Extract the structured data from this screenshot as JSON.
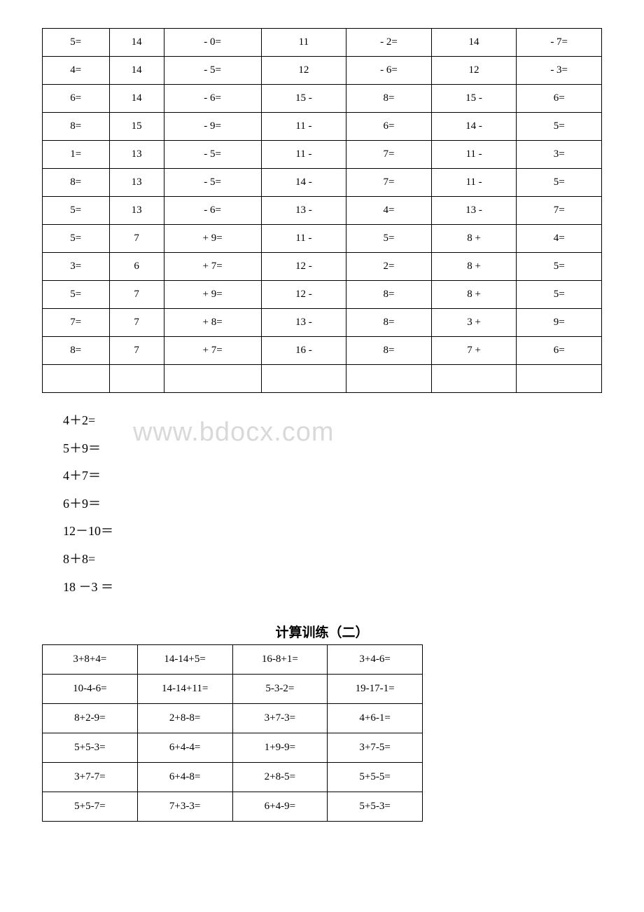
{
  "table1": {
    "rows": [
      [
        "5=",
        "14",
        "- 0=",
        "11",
        "- 2=",
        "14",
        "- 7="
      ],
      [
        "4=",
        "14",
        "- 5=",
        "12",
        "- 6=",
        "12",
        "- 3="
      ],
      [
        "6=",
        "14",
        "- 6=",
        "15 -",
        "8=",
        "15 -",
        "6="
      ],
      [
        "8=",
        "15",
        "- 9=",
        "11 -",
        "6=",
        "14 -",
        "5="
      ],
      [
        "1=",
        "13",
        "- 5=",
        "11 -",
        "7=",
        "11 -",
        "3="
      ],
      [
        "8=",
        "13",
        "- 5=",
        "14 -",
        "7=",
        "11 -",
        "5="
      ],
      [
        "5=",
        "13",
        "- 6=",
        "13 -",
        "4=",
        "13 -",
        "7="
      ],
      [
        "5=",
        "7",
        "+ 9=",
        "11 -",
        "5=",
        "8 +",
        "4="
      ],
      [
        "3=",
        "6",
        "+ 7=",
        "12 -",
        "2=",
        "8 +",
        "5="
      ],
      [
        "5=",
        "7",
        "+ 9=",
        "12 -",
        "8=",
        "8 +",
        "5="
      ],
      [
        "7=",
        "7",
        "+ 8=",
        "13 -",
        "8=",
        "3 +",
        "9="
      ],
      [
        "8=",
        "7",
        "+ 7=",
        "16 -",
        "8=",
        "7 +",
        "6="
      ],
      [
        "",
        "",
        "",
        "",
        "",
        "",
        ""
      ]
    ]
  },
  "equations": {
    "items": [
      "4＋2=",
      "5＋9＝",
      "4＋7＝",
      "6＋9＝",
      "12－10＝",
      "8＋8=",
      "18 －3 ＝"
    ]
  },
  "watermark": "www.bdocx.com",
  "section2_title": "计算训练（二）",
  "table2": {
    "rows": [
      [
        "3+8+4=",
        "14-14+5=",
        "16-8+1=",
        "3+4-6="
      ],
      [
        "10-4-6=",
        "14-14+11=",
        "5-3-2=",
        "19-17-1="
      ],
      [
        "8+2-9=",
        "2+8-8=",
        "3+7-3=",
        "4+6-1="
      ],
      [
        "5+5-3=",
        "6+4-4=",
        "1+9-9=",
        "3+7-5="
      ],
      [
        "3+7-7=",
        "6+4-8=",
        "2+8-5=",
        "5+5-5="
      ],
      [
        "5+5-7=",
        "7+3-3=",
        "6+4-9=",
        "5+5-3="
      ]
    ]
  }
}
